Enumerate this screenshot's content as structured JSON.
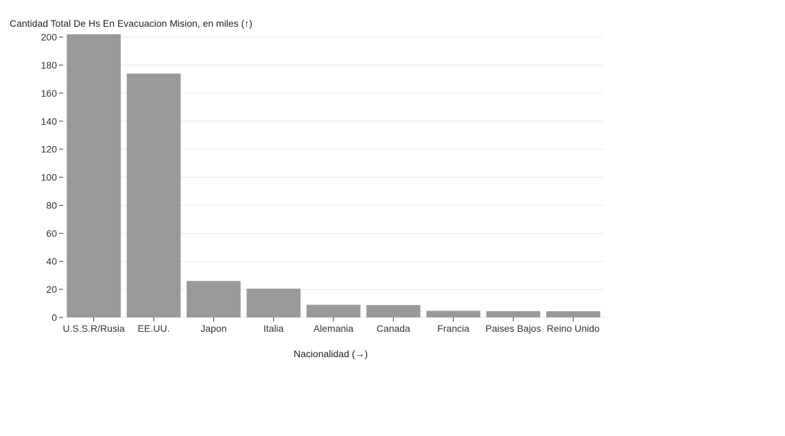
{
  "chart_data": {
    "type": "bar",
    "ylabel": "Cantidad Total De Hs En Evacuacion Mision, en miles (↑)",
    "xlabel": "Nacionalidad (→)",
    "categories": [
      "U.S.S.R/Rusia",
      "EE.UU.",
      "Japon",
      "Italia",
      "Alemania",
      "Canada",
      "Francia",
      "Paises Bajos",
      "Reino Unido"
    ],
    "values": [
      202,
      174,
      26,
      20.5,
      9,
      8.8,
      4.7,
      4.5,
      4.4
    ],
    "ylim": [
      0,
      202
    ],
    "yticks": [
      0,
      20,
      40,
      60,
      80,
      100,
      120,
      140,
      160,
      180,
      200
    ],
    "grid": true,
    "bar_color": "#999999",
    "legend": "none"
  }
}
